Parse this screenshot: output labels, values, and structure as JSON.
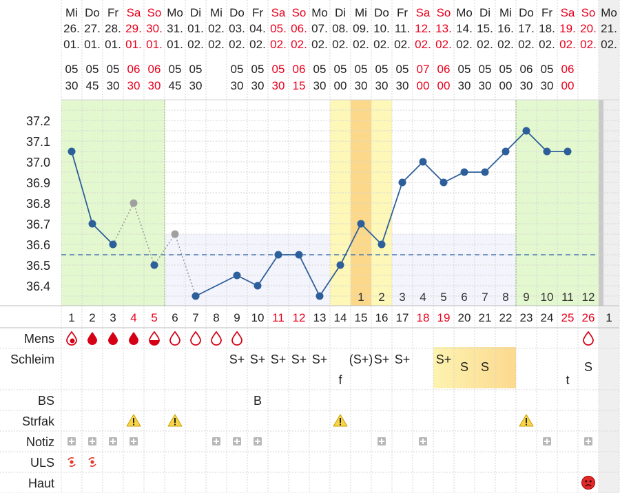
{
  "colors": {
    "weekday_text": "#222222",
    "weekend_text": "#e8001c",
    "line": "#2d5f9a",
    "dotted_line": "#9a9a9a",
    "coverline": "#4a78b0",
    "green_zone": "#e3f8cf",
    "yellow_zone": "#fdf7b8",
    "orange_zone": "#fcd98a",
    "low_zone": "#f4f4fc",
    "mucus_zone": "#fde49a",
    "grid": "#d4d4d4",
    "future_col": "#efefef"
  },
  "chart_data": {
    "type": "line",
    "title": "",
    "xlabel": "",
    "ylabel": "",
    "ylim": [
      36.3,
      37.3
    ],
    "y_ticks": [
      "37.2",
      "37.1",
      "37.0",
      "36.9",
      "36.8",
      "36.7",
      "36.6",
      "36.5",
      "36.4"
    ],
    "coverline": 36.55,
    "grid": true,
    "days": [
      {
        "wd": "Mi",
        "date": "26.",
        "month": "01.",
        "time_h": "05",
        "time_m": "30",
        "cycle": "1",
        "weekend": false
      },
      {
        "wd": "Do",
        "date": "27.",
        "month": "01.",
        "time_h": "05",
        "time_m": "45",
        "cycle": "2",
        "weekend": false
      },
      {
        "wd": "Fr",
        "date": "28.",
        "month": "01.",
        "time_h": "05",
        "time_m": "30",
        "cycle": "3",
        "weekend": false
      },
      {
        "wd": "Sa",
        "date": "29.",
        "month": "01.",
        "time_h": "06",
        "time_m": "30",
        "cycle": "4",
        "weekend": true
      },
      {
        "wd": "So",
        "date": "30.",
        "month": "01.",
        "time_h": "06",
        "time_m": "30",
        "cycle": "5",
        "weekend": true
      },
      {
        "wd": "Mo",
        "date": "31.",
        "month": "01.",
        "time_h": "05",
        "time_m": "45",
        "cycle": "6",
        "weekend": false
      },
      {
        "wd": "Di",
        "date": "01.",
        "month": "02.",
        "time_h": "05",
        "time_m": "30",
        "cycle": "7",
        "weekend": false
      },
      {
        "wd": "Mi",
        "date": "02.",
        "month": "02.",
        "time_h": "",
        "time_m": "",
        "cycle": "8",
        "weekend": false
      },
      {
        "wd": "Do",
        "date": "03.",
        "month": "02.",
        "time_h": "05",
        "time_m": "30",
        "cycle": "9",
        "weekend": false
      },
      {
        "wd": "Fr",
        "date": "04.",
        "month": "02.",
        "time_h": "05",
        "time_m": "30",
        "cycle": "10",
        "weekend": false
      },
      {
        "wd": "Sa",
        "date": "05.",
        "month": "02.",
        "time_h": "05",
        "time_m": "30",
        "cycle": "11",
        "weekend": true
      },
      {
        "wd": "So",
        "date": "06.",
        "month": "02.",
        "time_h": "06",
        "time_m": "15",
        "cycle": "12",
        "weekend": true
      },
      {
        "wd": "Mo",
        "date": "07.",
        "month": "02.",
        "time_h": "05",
        "time_m": "30",
        "cycle": "13",
        "weekend": false
      },
      {
        "wd": "Di",
        "date": "08.",
        "month": "02.",
        "time_h": "05",
        "time_m": "00",
        "cycle": "14",
        "weekend": false
      },
      {
        "wd": "Mi",
        "date": "09.",
        "month": "02.",
        "time_h": "05",
        "time_m": "30",
        "cycle": "15",
        "weekend": false
      },
      {
        "wd": "Do",
        "date": "10.",
        "month": "02.",
        "time_h": "05",
        "time_m": "30",
        "cycle": "16",
        "weekend": false
      },
      {
        "wd": "Fr",
        "date": "11.",
        "month": "02.",
        "time_h": "05",
        "time_m": "30",
        "cycle": "17",
        "weekend": false
      },
      {
        "wd": "Sa",
        "date": "12.",
        "month": "02.",
        "time_h": "07",
        "time_m": "00",
        "cycle": "18",
        "weekend": true
      },
      {
        "wd": "So",
        "date": "13.",
        "month": "02.",
        "time_h": "06",
        "time_m": "00",
        "cycle": "19",
        "weekend": true
      },
      {
        "wd": "Mo",
        "date": "14.",
        "month": "02.",
        "time_h": "05",
        "time_m": "30",
        "cycle": "20",
        "weekend": false
      },
      {
        "wd": "Di",
        "date": "15.",
        "month": "02.",
        "time_h": "05",
        "time_m": "30",
        "cycle": "21",
        "weekend": false
      },
      {
        "wd": "Mi",
        "date": "16.",
        "month": "02.",
        "time_h": "05",
        "time_m": "00",
        "cycle": "22",
        "weekend": false
      },
      {
        "wd": "Do",
        "date": "17.",
        "month": "02.",
        "time_h": "06",
        "time_m": "30",
        "cycle": "23",
        "weekend": false
      },
      {
        "wd": "Fr",
        "date": "18.",
        "month": "02.",
        "time_h": "05",
        "time_m": "30",
        "cycle": "24",
        "weekend": false
      },
      {
        "wd": "Sa",
        "date": "19.",
        "month": "02.",
        "time_h": "06",
        "time_m": "00",
        "cycle": "25",
        "weekend": true
      },
      {
        "wd": "So",
        "date": "20.",
        "month": "02.",
        "time_h": "",
        "time_m": "",
        "cycle": "26",
        "weekend": true
      },
      {
        "wd": "Mo",
        "date": "21.",
        "month": "02.",
        "time_h": "",
        "time_m": "",
        "cycle": "1",
        "weekend": false
      }
    ],
    "series": [
      {
        "style": "solid",
        "points": [
          [
            1,
            37.05
          ],
          [
            2,
            36.7
          ],
          [
            3,
            36.6
          ]
        ]
      },
      {
        "style": "dotted",
        "points": [
          [
            3,
            36.6
          ],
          [
            4,
            36.8
          ],
          [
            5,
            36.5
          ],
          [
            6,
            36.65
          ],
          [
            7,
            36.35
          ]
        ]
      },
      {
        "style": "solid",
        "points": [
          [
            5,
            36.5
          ]
        ]
      },
      {
        "style": "solid",
        "points": [
          [
            7,
            36.35
          ],
          [
            9,
            36.45
          ],
          [
            10,
            36.4
          ],
          [
            11,
            36.55
          ],
          [
            12,
            36.55
          ],
          [
            13,
            36.35
          ],
          [
            14,
            36.5
          ],
          [
            15,
            36.7
          ],
          [
            16,
            36.6
          ],
          [
            17,
            36.9
          ],
          [
            18,
            37.0
          ],
          [
            19,
            36.9
          ],
          [
            20,
            36.95
          ],
          [
            21,
            36.95
          ],
          [
            22,
            37.05
          ],
          [
            23,
            37.15
          ],
          [
            24,
            37.05
          ],
          [
            25,
            37.05
          ]
        ]
      }
    ],
    "gray_points": [
      [
        4,
        36.8
      ],
      [
        6,
        36.65
      ]
    ],
    "post_ovulation_counts": [
      {
        "day": 15,
        "label": "1"
      },
      {
        "day": 16,
        "label": "2"
      },
      {
        "day": 17,
        "label": "3"
      },
      {
        "day": 18,
        "label": "4"
      },
      {
        "day": 19,
        "label": "5"
      },
      {
        "day": 20,
        "label": "6"
      },
      {
        "day": 21,
        "label": "7"
      },
      {
        "day": 22,
        "label": "8"
      },
      {
        "day": 23,
        "label": "9"
      },
      {
        "day": 24,
        "label": "10"
      },
      {
        "day": 25,
        "label": "11"
      },
      {
        "day": 26,
        "label": "12"
      }
    ],
    "zones": {
      "green": [
        [
          1,
          5
        ],
        [
          23,
          26
        ]
      ],
      "yellow": [
        14,
        16
      ],
      "orange": [
        15,
        15
      ],
      "low": [
        6,
        22
      ]
    }
  },
  "rows": [
    {
      "label": "Mens"
    },
    {
      "label": "Schleim"
    },
    {
      "label": "BS"
    },
    {
      "label": "Strfak"
    },
    {
      "label": "Notiz"
    },
    {
      "label": "ULS"
    },
    {
      "label": "Haut"
    }
  ],
  "mens": [
    {
      "day": 1,
      "icon": "drop-spotting-icon"
    },
    {
      "day": 2,
      "icon": "drop-full-icon"
    },
    {
      "day": 3,
      "icon": "drop-full-icon"
    },
    {
      "day": 4,
      "icon": "drop-full-icon"
    },
    {
      "day": 5,
      "icon": "drop-half-icon"
    },
    {
      "day": 6,
      "icon": "drop-outline-icon"
    },
    {
      "day": 7,
      "icon": "drop-outline-icon"
    },
    {
      "day": 8,
      "icon": "drop-outline-icon"
    },
    {
      "day": 9,
      "icon": "drop-outline-icon"
    },
    {
      "day": 26,
      "icon": "drop-outline-icon"
    }
  ],
  "schleim": [
    {
      "day": 9,
      "text": "S+",
      "pos": "top"
    },
    {
      "day": 10,
      "text": "S+",
      "pos": "top"
    },
    {
      "day": 11,
      "text": "S+",
      "pos": "top"
    },
    {
      "day": 12,
      "text": "S+",
      "pos": "top"
    },
    {
      "day": 13,
      "text": "S+",
      "pos": "top"
    },
    {
      "day": 14,
      "text": "f",
      "pos": "bottom"
    },
    {
      "day": 15,
      "text": "(S+)",
      "pos": "top"
    },
    {
      "day": 16,
      "text": "S+",
      "pos": "top"
    },
    {
      "day": 17,
      "text": "S+",
      "pos": "top"
    },
    {
      "day": 19,
      "text": "S+",
      "pos": "top"
    },
    {
      "day": 20,
      "text": "S",
      "pos": "mid"
    },
    {
      "day": 21,
      "text": "S",
      "pos": "mid"
    },
    {
      "day": 25,
      "text": "t",
      "pos": "bottom"
    },
    {
      "day": 26,
      "text": "S",
      "pos": "mid"
    }
  ],
  "schleim_highlight": [
    19,
    22
  ],
  "bs": [
    {
      "day": 10,
      "text": "B"
    }
  ],
  "strfak": [
    4,
    6,
    14,
    23
  ],
  "notiz": [
    1,
    2,
    3,
    4,
    8,
    9,
    10,
    16,
    18,
    24,
    26
  ],
  "uls": [
    1,
    2
  ],
  "haut": [
    {
      "day": 26,
      "icon": "sad-face-icon"
    }
  ]
}
